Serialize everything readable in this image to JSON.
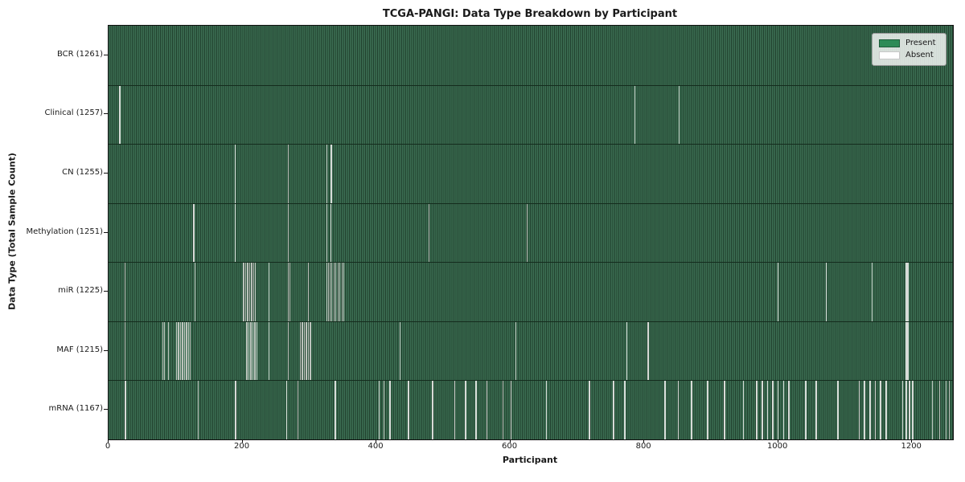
{
  "chart_data": {
    "type": "heatmap",
    "title": "TCGA-PANGI: Data Type Breakdown by Participant",
    "xlabel": "Participant",
    "ylabel": "Data Type (Total Sample Count)",
    "x_ticks": [
      0,
      200,
      400,
      600,
      800,
      1000,
      1200
    ],
    "x_range": [
      0,
      1261
    ],
    "total_participants": 1261,
    "grid": false,
    "legend_position": "upper right",
    "legend": [
      {
        "label": "Present",
        "color": "#2e8b57"
      },
      {
        "label": "Absent",
        "color": "#ffffff"
      }
    ],
    "colors": {
      "present": "#2e8b57",
      "absent": "#ffffff",
      "present_rendered_light": "#3c6e53",
      "present_rendered_dark": "#21412e",
      "absent_rendered_stripe": "#bcc3bc",
      "spine": "#101010"
    },
    "rows": [
      {
        "key": "bcr",
        "label": "BCR (1261)",
        "data_type": "BCR",
        "count": 1261,
        "absent": []
      },
      {
        "key": "clinical",
        "label": "Clinical (1257)",
        "data_type": "Clinical",
        "count": 1257,
        "absent": [
          16,
          17,
          785,
          852
        ]
      },
      {
        "key": "cn",
        "label": "CN (1255)",
        "data_type": "CN",
        "count": 1255,
        "absent": [
          188,
          189,
          268,
          326,
          332,
          333
        ]
      },
      {
        "key": "methylation",
        "label": "Methylation (1251)",
        "data_type": "Methylation",
        "count": 1251,
        "absent": [
          126,
          127,
          188,
          189,
          268,
          326,
          331,
          332,
          478,
          624
        ]
      },
      {
        "key": "mir",
        "label": "miR (1225)",
        "data_type": "miR",
        "count": 1225,
        "absent": [
          24,
          129,
          200,
          202,
          204,
          206,
          208,
          210,
          212,
          214,
          216,
          218,
          239,
          268,
          270,
          298,
          326,
          328,
          330,
          333,
          336,
          339,
          342,
          345,
          348,
          351,
          999,
          1000,
          1071,
          1072,
          1140,
          1190,
          1191,
          1192,
          1193,
          1194
        ]
      },
      {
        "key": "maf",
        "label": "MAF (1215)",
        "data_type": "MAF",
        "count": 1215,
        "absent": [
          24,
          81,
          83,
          89,
          101,
          103,
          105,
          107,
          109,
          111,
          113,
          115,
          117,
          119,
          121,
          205,
          207,
          209,
          211,
          213,
          215,
          217,
          219,
          221,
          239,
          268,
          286,
          288,
          290,
          292,
          294,
          296,
          298,
          300,
          302,
          435,
          608,
          773,
          774,
          805,
          806,
          1190,
          1191,
          1192,
          1193,
          1194
        ]
      },
      {
        "key": "mrna",
        "label": "mRNA (1167)",
        "data_type": "mRNA",
        "count": 1167,
        "absent": [
          24,
          25,
          133,
          189,
          190,
          265,
          266,
          282,
          338,
          339,
          403,
          404,
          411,
          419,
          420,
          447,
          448,
          483,
          484,
          516,
          517,
          532,
          533,
          548,
          549,
          564,
          565,
          588,
          600,
          601,
          653,
          654,
          717,
          718,
          753,
          754,
          770,
          771,
          830,
          831,
          850,
          851,
          870,
          871,
          894,
          895,
          919,
          920,
          947,
          948,
          967,
          968,
          975,
          976,
          983,
          984,
          991,
          992,
          999,
          1000,
          1007,
          1008,
          1015,
          1016,
          1040,
          1041,
          1056,
          1057,
          1088,
          1089,
          1120,
          1121,
          1128,
          1129,
          1136,
          1137,
          1144,
          1145,
          1152,
          1153,
          1160,
          1161,
          1185,
          1186,
          1190,
          1191,
          1195,
          1196,
          1200,
          1201,
          1230,
          1240,
          1250,
          1255
        ]
      }
    ]
  }
}
